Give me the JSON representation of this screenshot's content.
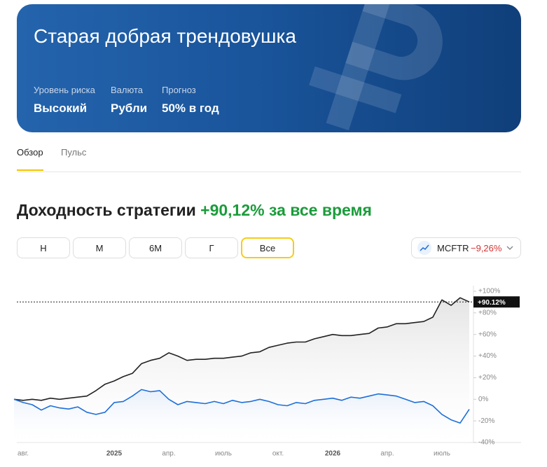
{
  "header": {
    "title": "Старая добрая трендовушка",
    "params": [
      {
        "label": "Уровень риска",
        "value": "Высокий"
      },
      {
        "label": "Валюта",
        "value": "Рубли"
      },
      {
        "label": "Прогноз",
        "value": "50% в год"
      }
    ]
  },
  "tabs": [
    "Обзор",
    "Пульс"
  ],
  "active_tab": 0,
  "returns": {
    "title": "Доходность стратегии",
    "value": "+90,12% за все время"
  },
  "periods": [
    "Н",
    "М",
    "6М",
    "Г",
    "Все"
  ],
  "active_period": 4,
  "compare": {
    "value": "−9,26%"
  },
  "chart_data": {
    "type": "line",
    "categories": [
      null,
      "авг.",
      null,
      null,
      null,
      null,
      null,
      null,
      null,
      null,
      null,
      "2025",
      null,
      null,
      null,
      null,
      null,
      "апр.",
      null,
      null,
      null,
      null,
      null,
      "июль",
      null,
      null,
      null,
      null,
      null,
      "окт.",
      null,
      null,
      null,
      null,
      null,
      "2026",
      null,
      null,
      null,
      null,
      null,
      "апр.",
      null,
      null,
      null,
      null,
      null,
      "июль",
      null,
      null,
      null
    ],
    "series": [
      {
        "color": "#222222",
        "values": [
          0,
          -1,
          0,
          -1,
          1,
          0,
          1,
          2,
          3,
          8,
          14,
          17,
          21,
          24,
          33,
          36,
          38,
          43,
          40,
          36,
          37,
          37,
          38,
          38,
          39,
          40,
          43,
          44,
          48,
          50,
          52,
          53,
          53,
          56,
          58,
          60,
          59,
          59,
          60,
          61,
          66,
          67,
          70,
          70,
          71,
          72,
          76,
          92,
          87,
          94,
          90.12
        ]
      },
      {
        "name": "MCFTR",
        "color": "#1e6fd9",
        "values": [
          0,
          -3,
          -5,
          -10,
          -6,
          -8,
          -9,
          -7,
          -12,
          -14,
          -12,
          -3,
          -2,
          3,
          9,
          7,
          8,
          0,
          -5,
          -2,
          -3,
          -4,
          -2,
          -4,
          -1,
          -3,
          -2,
          0,
          -2,
          -5,
          -6,
          -3,
          -4,
          -1,
          0,
          1,
          -1,
          2,
          1,
          3,
          5,
          4,
          3,
          0,
          -3,
          -2,
          -6,
          -14,
          -19,
          -22,
          -9.26
        ]
      }
    ],
    "marker_label": "+90.12%",
    "ylim": [
      -40,
      100
    ],
    "yticks": [
      {
        "value": 100,
        "label": "+100%"
      },
      {
        "value": 80,
        "label": "+80%"
      },
      {
        "value": 60,
        "label": "+60%"
      },
      {
        "value": 40,
        "label": "+40%"
      },
      {
        "value": 20,
        "label": "+20%"
      },
      {
        "value": 0,
        "label": "0%"
      },
      {
        "value": -20,
        "label": "-20%"
      },
      {
        "value": -40,
        "label": "-40%"
      }
    ]
  }
}
